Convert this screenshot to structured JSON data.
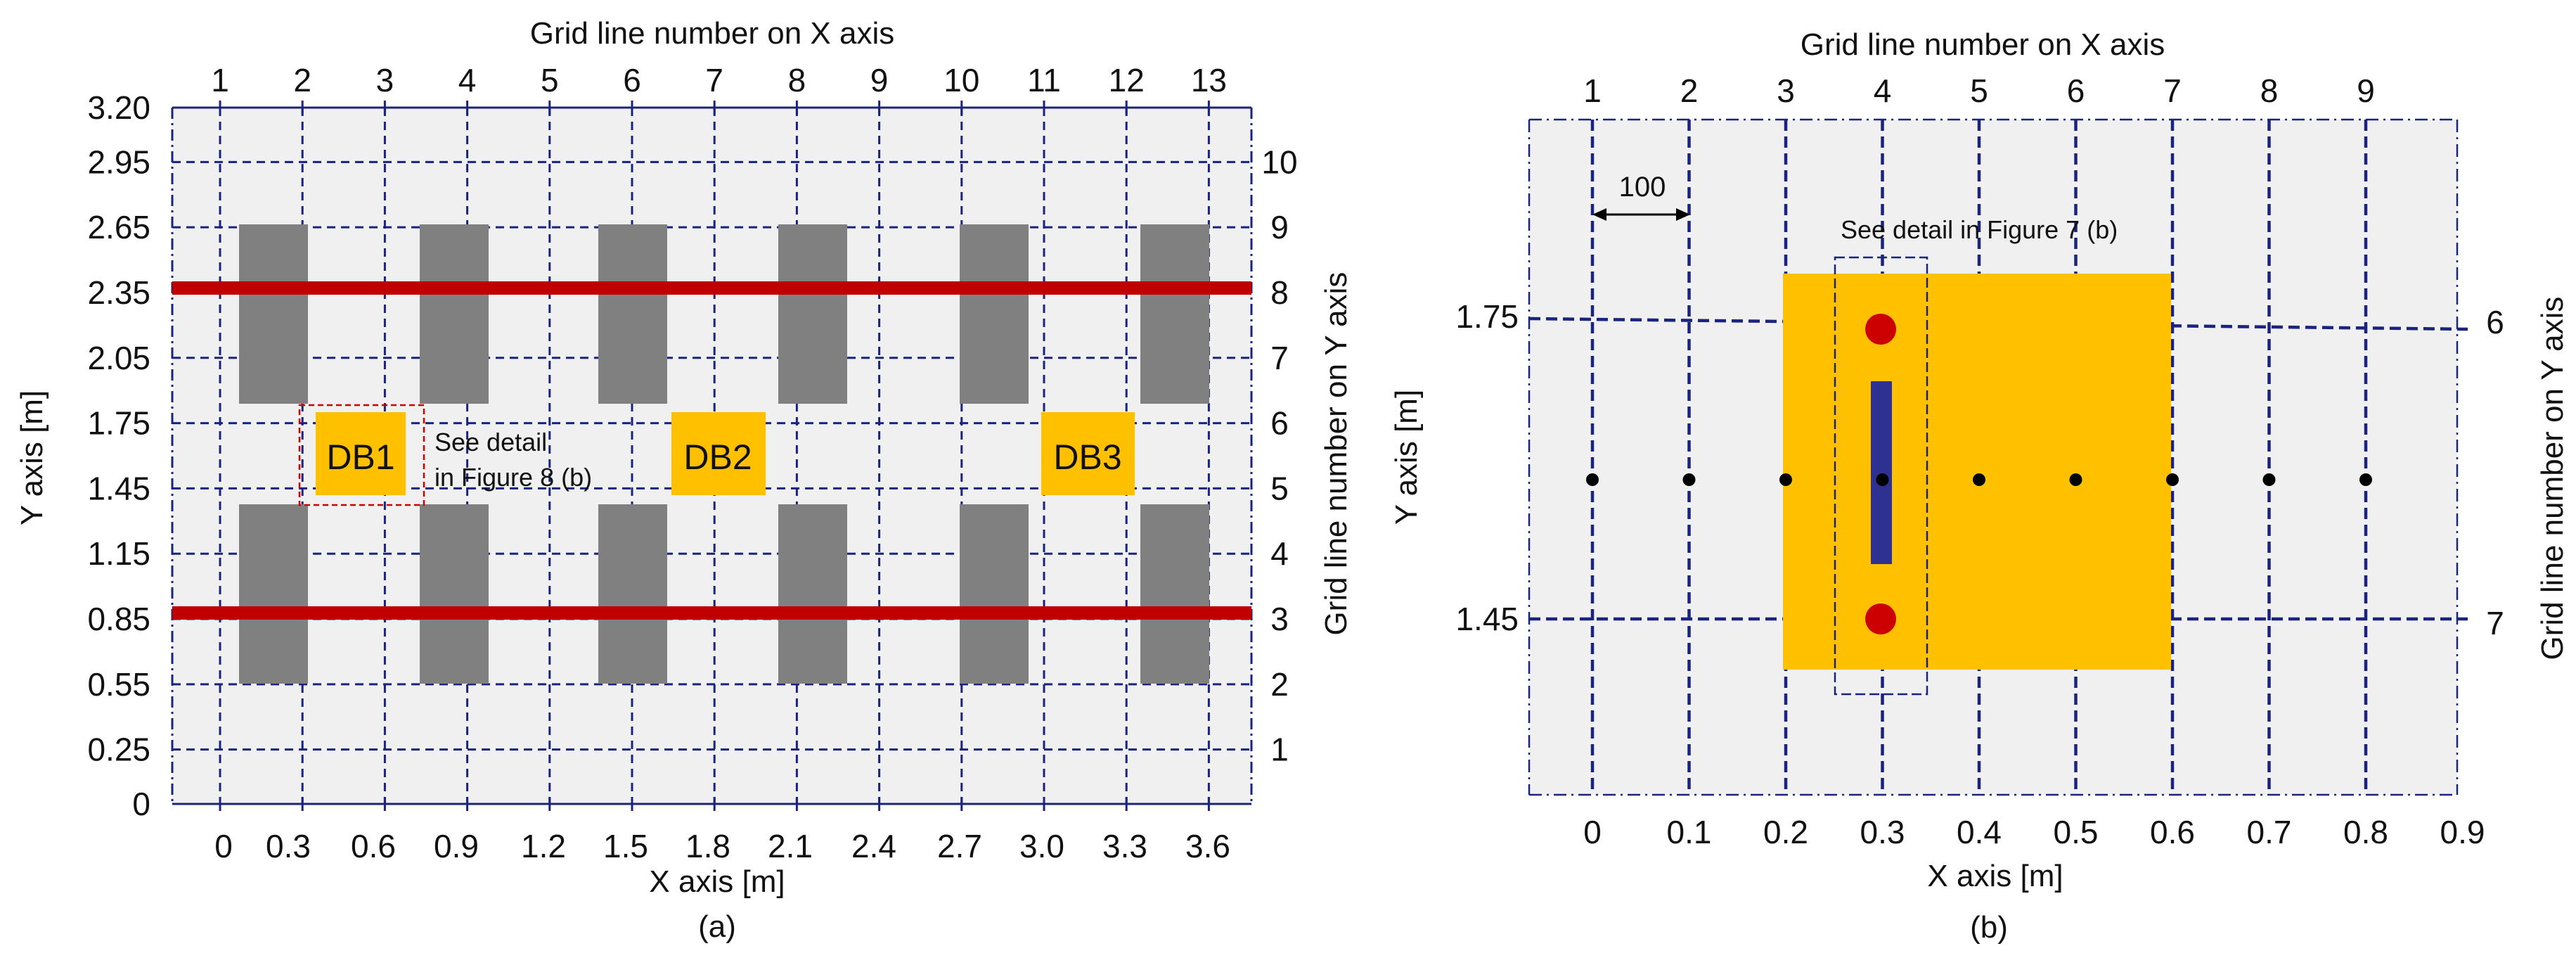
{
  "colors": {
    "panel_bg": "#f0f0f0",
    "grid": "#1a237e",
    "column": "#808080",
    "rail": "#c00000",
    "box": "#ffc000",
    "beam": "#2e3192",
    "sensor": "#cc0000",
    "detail_a": "#cc0000",
    "detail_b": "#1a237e"
  },
  "panel_a": {
    "caption": "(a)",
    "top_title": "Grid line number on X axis",
    "x_label": "X axis [m]",
    "y_label": "Y axis [m]",
    "right_label": "Grid line number on Y axis",
    "x_ticks": [
      "0",
      "0.3",
      "0.6",
      "0.9",
      "1.2",
      "1.5",
      "1.8",
      "2.1",
      "2.4",
      "2.7",
      "3.0",
      "3.3",
      "3.6"
    ],
    "y_ticks": [
      "0",
      "0.25",
      "0.55",
      "0.85",
      "1.15",
      "1.45",
      "1.75",
      "2.05",
      "2.35",
      "2.65",
      "2.95",
      "3.20"
    ],
    "x_grid_numbers": [
      "1",
      "2",
      "3",
      "4",
      "5",
      "6",
      "7",
      "8",
      "9",
      "10",
      "11",
      "12",
      "13"
    ],
    "y_grid_numbers": [
      "1",
      "2",
      "3",
      "4",
      "5",
      "6",
      "7",
      "8",
      "9",
      "10"
    ],
    "boxes": [
      "DB1",
      "DB2",
      "DB3"
    ],
    "note_line1": "See detail",
    "note_line2": "in Figure 8 (b)"
  },
  "panel_b": {
    "caption": "(b)",
    "top_title": "Grid line number on X axis",
    "x_label": "X axis [m]",
    "y_label": "Y axis [m]",
    "right_label": "Grid line number on Y axis",
    "x_ticks": [
      "0",
      "0.1",
      "0.2",
      "0.3",
      "0.4",
      "0.5",
      "0.6",
      "0.7",
      "0.8",
      "0.9"
    ],
    "y_ticks": [
      "1.75",
      "1.45"
    ],
    "x_grid_numbers": [
      "1",
      "2",
      "3",
      "4",
      "5",
      "6",
      "7",
      "8",
      "9"
    ],
    "y_grid_numbers": [
      "6",
      "7"
    ],
    "dimension": "100",
    "note": "See detail in Figure 7 (b)"
  }
}
